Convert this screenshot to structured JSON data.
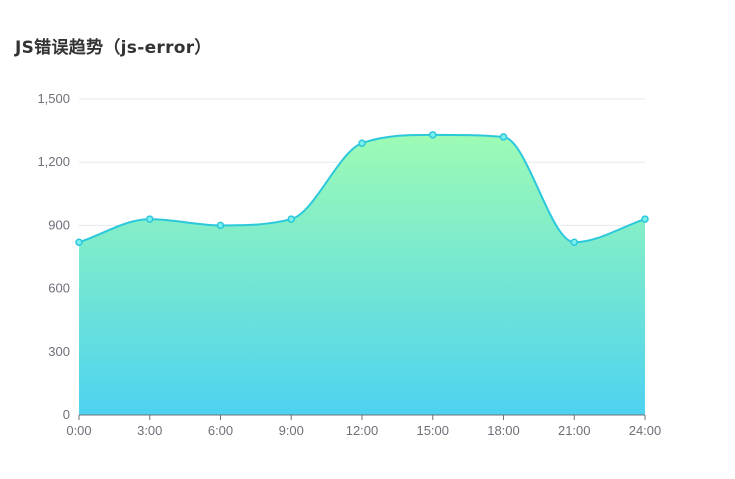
{
  "title": "JS错误趋势（js-error）",
  "colors": {
    "line": "#2bc8dc",
    "point_fill": "#7ef0ec",
    "area_top": "#9dfbb4",
    "area_bottom": "#4dd2f0",
    "grid": "#e6e8ef",
    "axis": "#6e7079"
  },
  "chart_data": {
    "type": "area",
    "title": "JS错误趋势（js-error）",
    "x": [
      "0:00",
      "3:00",
      "6:00",
      "9:00",
      "12:00",
      "15:00",
      "18:00",
      "21:00",
      "24:00"
    ],
    "values": [
      820,
      930,
      900,
      930,
      1290,
      1330,
      1320,
      820,
      930
    ],
    "ylim": [
      0,
      1500
    ],
    "y_ticks": [
      "0",
      "300",
      "600",
      "900",
      "1,200",
      "1,500"
    ],
    "y_tick_values": [
      0,
      300,
      600,
      900,
      1200,
      1500
    ],
    "smooth": true,
    "grid": "horizontal",
    "legend": "none"
  }
}
